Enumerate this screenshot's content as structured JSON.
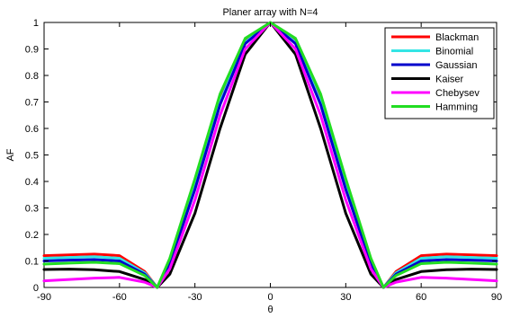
{
  "chart_data": {
    "type": "line",
    "title": "Planer array with N=4",
    "xlabel": "θ",
    "ylabel": "AF",
    "xlim": [
      -90,
      90
    ],
    "ylim": [
      0,
      1
    ],
    "x_ticks": [
      -90,
      -60,
      -30,
      0,
      30,
      60,
      90
    ],
    "y_ticks": [
      0,
      0.1,
      0.2,
      0.3,
      0.4,
      0.5,
      0.6,
      0.7,
      0.8,
      0.9,
      1
    ],
    "x_tick_labels": [
      "-90",
      "-60",
      "-30",
      "0",
      "30",
      "60",
      "90"
    ],
    "y_tick_labels": [
      "0",
      "0.1",
      "0.2",
      "0.3",
      "0.4",
      "0.5",
      "0.6",
      "0.7",
      "0.8",
      "0.9",
      "1"
    ],
    "grid": false,
    "legend_position": "top-right",
    "x": [
      -90,
      -80,
      -70,
      -60,
      -50,
      -45,
      -40,
      -30,
      -20,
      -10,
      0,
      10,
      20,
      30,
      40,
      45,
      50,
      60,
      70,
      80,
      90
    ],
    "series": [
      {
        "name": "Blackman",
        "color": "#ff0000",
        "values": [
          0.12,
          0.123,
          0.126,
          0.12,
          0.06,
          0.0,
          0.1,
          0.39,
          0.71,
          0.93,
          1.0,
          0.93,
          0.71,
          0.39,
          0.1,
          0.0,
          0.06,
          0.12,
          0.126,
          0.123,
          0.12
        ]
      },
      {
        "name": "Binomial",
        "color": "#33e5e5",
        "values": [
          0.11,
          0.113,
          0.116,
          0.11,
          0.055,
          0.0,
          0.095,
          0.38,
          0.7,
          0.925,
          1.0,
          0.925,
          0.7,
          0.38,
          0.095,
          0.0,
          0.055,
          0.11,
          0.116,
          0.113,
          0.11
        ]
      },
      {
        "name": "Gaussian",
        "color": "#0000cc",
        "values": [
          0.1,
          0.103,
          0.105,
          0.1,
          0.05,
          0.0,
          0.09,
          0.37,
          0.69,
          0.92,
          1.0,
          0.92,
          0.69,
          0.37,
          0.09,
          0.0,
          0.05,
          0.1,
          0.105,
          0.103,
          0.1
        ]
      },
      {
        "name": "Kaiser",
        "color": "#000000",
        "values": [
          0.068,
          0.069,
          0.067,
          0.06,
          0.03,
          0.0,
          0.05,
          0.28,
          0.6,
          0.88,
          1.0,
          0.88,
          0.6,
          0.28,
          0.05,
          0.0,
          0.03,
          0.06,
          0.067,
          0.069,
          0.068
        ]
      },
      {
        "name": "Chebysev",
        "color": "#ff00ff",
        "values": [
          0.025,
          0.03,
          0.035,
          0.038,
          0.02,
          0.0,
          0.07,
          0.33,
          0.65,
          0.9,
          1.0,
          0.9,
          0.65,
          0.33,
          0.07,
          0.0,
          0.02,
          0.038,
          0.035,
          0.03,
          0.025
        ]
      },
      {
        "name": "Hamming",
        "color": "#22dd22",
        "values": [
          0.088,
          0.092,
          0.095,
          0.09,
          0.045,
          0.0,
          0.11,
          0.41,
          0.73,
          0.94,
          1.0,
          0.94,
          0.73,
          0.41,
          0.11,
          0.0,
          0.045,
          0.09,
          0.095,
          0.092,
          0.088
        ]
      }
    ]
  }
}
